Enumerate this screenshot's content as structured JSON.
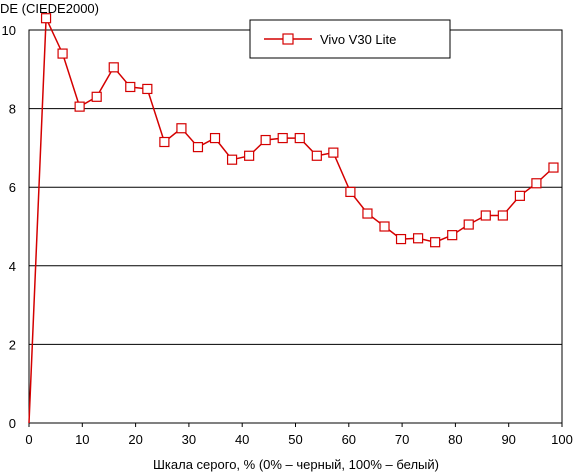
{
  "chart_data": {
    "type": "line",
    "title": "",
    "ylabel": "DE (CIEDE2000)",
    "xlabel": "Шкала серого, % (0% – черный, 100% – белый)",
    "xlim": [
      0,
      100
    ],
    "ylim": [
      0,
      10
    ],
    "xticks": [
      0,
      10,
      20,
      30,
      40,
      50,
      60,
      70,
      80,
      90,
      100
    ],
    "yticks": [
      0,
      2,
      4,
      6,
      8,
      10
    ],
    "x_tick_labels": [
      "0",
      "10",
      "20",
      "30",
      "40",
      "50",
      "60",
      "70",
      "80",
      "90",
      "100"
    ],
    "y_tick_labels": [
      "0",
      "2",
      "4",
      "6",
      "8",
      "10"
    ],
    "grid": {
      "horizontal": true,
      "vertical": false
    },
    "legend": {
      "position": "top-right"
    },
    "series": [
      {
        "name": "Vivo V30 Lite",
        "color": "#d40000",
        "marker": "square-open",
        "points": [
          {
            "x": 0,
            "y": 0
          },
          {
            "x": 3.2,
            "y": 10.3
          },
          {
            "x": 6.3,
            "y": 9.4
          },
          {
            "x": 9.5,
            "y": 8.05
          },
          {
            "x": 12.7,
            "y": 8.3
          },
          {
            "x": 15.9,
            "y": 9.05
          },
          {
            "x": 19.0,
            "y": 8.55
          },
          {
            "x": 22.2,
            "y": 8.5
          },
          {
            "x": 25.4,
            "y": 7.15
          },
          {
            "x": 28.6,
            "y": 7.5
          },
          {
            "x": 31.7,
            "y": 7.02
          },
          {
            "x": 34.9,
            "y": 7.25
          },
          {
            "x": 38.1,
            "y": 6.7
          },
          {
            "x": 41.3,
            "y": 6.8
          },
          {
            "x": 44.4,
            "y": 7.2
          },
          {
            "x": 47.6,
            "y": 7.25
          },
          {
            "x": 50.8,
            "y": 7.25
          },
          {
            "x": 54.0,
            "y": 6.8
          },
          {
            "x": 57.1,
            "y": 6.88
          },
          {
            "x": 60.3,
            "y": 5.88
          },
          {
            "x": 63.5,
            "y": 5.33
          },
          {
            "x": 66.7,
            "y": 5.0
          },
          {
            "x": 69.8,
            "y": 4.68
          },
          {
            "x": 73.0,
            "y": 4.7
          },
          {
            "x": 76.2,
            "y": 4.6
          },
          {
            "x": 79.4,
            "y": 4.78
          },
          {
            "x": 82.5,
            "y": 5.05
          },
          {
            "x": 85.7,
            "y": 5.28
          },
          {
            "x": 88.9,
            "y": 5.28
          },
          {
            "x": 92.1,
            "y": 5.78
          },
          {
            "x": 95.2,
            "y": 6.1
          },
          {
            "x": 98.4,
            "y": 6.5
          }
        ]
      }
    ]
  }
}
